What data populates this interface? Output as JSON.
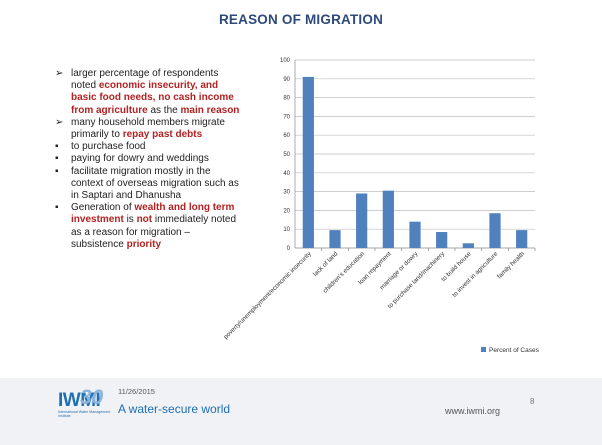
{
  "slide": {
    "title": "REASON OF MIGRATION",
    "bullets": [
      {
        "marker": "➢",
        "parts": [
          {
            "text": "larger percentage of respondents noted "
          },
          {
            "text": "economic insecurity, and basic food needs, no cash income from agriculture",
            "em": true
          },
          {
            "text": " as the "
          },
          {
            "text": "main reason",
            "em": true
          }
        ]
      },
      {
        "marker": "➢",
        "parts": [
          {
            "text": "many household members migrate primarily to "
          },
          {
            "text": "repay past debts",
            "em": true
          }
        ]
      },
      {
        "marker": "▪",
        "parts": [
          {
            "text": "to purchase food"
          }
        ]
      },
      {
        "marker": "▪",
        "parts": [
          {
            "text": "paying for dowry and weddings"
          }
        ]
      },
      {
        "marker": "▪",
        "parts": [
          {
            "text": "facilitate migration mostly in the context of overseas migration such as in Saptari and Dhanusha"
          }
        ]
      },
      {
        "marker": "▪",
        "parts": [
          {
            "text": "Generation of "
          },
          {
            "text": "wealth and long term investment",
            "em": true
          },
          {
            "text": " is "
          },
          {
            "text": "not",
            "em": true
          },
          {
            "text": " immediately noted as a reason for migration – subsistence "
          },
          {
            "text": "priority",
            "em": true
          }
        ]
      }
    ]
  },
  "chart_data": {
    "type": "bar",
    "categories": [
      "poverty/unemployment/economic insecurity",
      "lack of land",
      "children's education",
      "loan repayment",
      "marriage or dowry",
      "to purchase land/machinery",
      "to build house",
      "to invest in agriculture",
      "family health"
    ],
    "series": [
      {
        "name": "Percent of Cases",
        "values": [
          91,
          9.5,
          29,
          30.5,
          14,
          8.5,
          2.5,
          18.5,
          9.5
        ]
      }
    ],
    "ylim": [
      0,
      100
    ],
    "yticks": [
      0,
      10,
      20,
      30,
      40,
      50,
      60,
      70,
      80,
      90,
      100
    ],
    "grid": true,
    "legend": "bottom-right",
    "bar_color": "#4f81bd"
  },
  "footer": {
    "logo_text": "IWMI",
    "logo_sub": "International Water Management Institute",
    "logo_30": "30",
    "date": "11/26/2015",
    "tagline": "A water-secure world",
    "url": "www.iwmi.org",
    "page": "8"
  },
  "colors": {
    "title": "#2e4a7a",
    "emphasis": "#b22222",
    "brand_blue": "#1f6fb3"
  }
}
